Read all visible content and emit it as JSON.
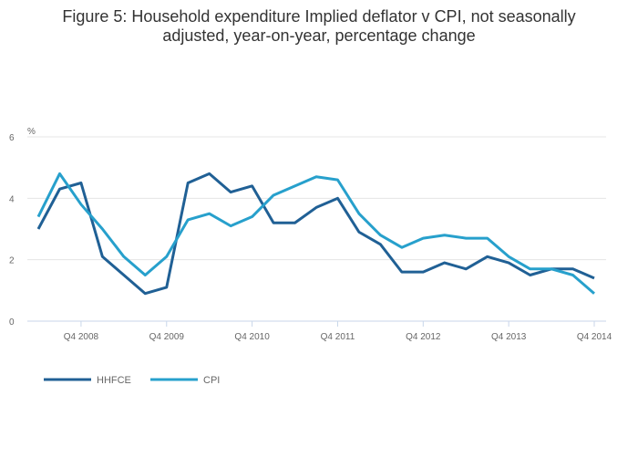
{
  "chart_data": {
    "type": "line",
    "title_line1": "Figure 5: Household expenditure Implied deflator v CPI, not seasonally",
    "title_line2": "adjusted, year-on-year, percentage change",
    "ylabel": "%",
    "xlabel": "",
    "ylim": [
      0,
      6
    ],
    "yticks": [
      0,
      2,
      4,
      6
    ],
    "grid": true,
    "legend_position": "bottom-left",
    "x": [
      "Q2 2008",
      "Q3 2008",
      "Q4 2008",
      "Q1 2009",
      "Q2 2009",
      "Q3 2009",
      "Q4 2009",
      "Q1 2010",
      "Q2 2010",
      "Q3 2010",
      "Q4 2010",
      "Q1 2011",
      "Q2 2011",
      "Q3 2011",
      "Q4 2011",
      "Q1 2012",
      "Q2 2012",
      "Q3 2012",
      "Q4 2012",
      "Q1 2013",
      "Q2 2013",
      "Q3 2013",
      "Q4 2013",
      "Q1 2014",
      "Q2 2014",
      "Q3 2014",
      "Q4 2014"
    ],
    "xticks": [
      "Q4 2008",
      "Q4 2009",
      "Q4 2010",
      "Q4 2011",
      "Q4 2012",
      "Q4 2013",
      "Q4 2014"
    ],
    "series": [
      {
        "name": "HHFCE",
        "color": "#206095",
        "values": [
          3.0,
          4.3,
          4.5,
          2.1,
          1.5,
          0.9,
          1.1,
          4.5,
          4.8,
          4.2,
          4.4,
          3.2,
          3.2,
          3.7,
          4.0,
          2.9,
          2.5,
          1.6,
          1.6,
          1.9,
          1.7,
          2.1,
          1.9,
          1.5,
          1.7,
          1.7,
          1.4
        ]
      },
      {
        "name": "CPI",
        "color": "#27a0cc",
        "values": [
          3.4,
          4.8,
          3.8,
          3.0,
          2.1,
          1.5,
          2.1,
          3.3,
          3.5,
          3.1,
          3.4,
          4.1,
          4.4,
          4.7,
          4.6,
          3.5,
          2.8,
          2.4,
          2.7,
          2.8,
          2.7,
          2.7,
          2.1,
          1.7,
          1.7,
          1.5,
          0.9
        ]
      }
    ]
  }
}
